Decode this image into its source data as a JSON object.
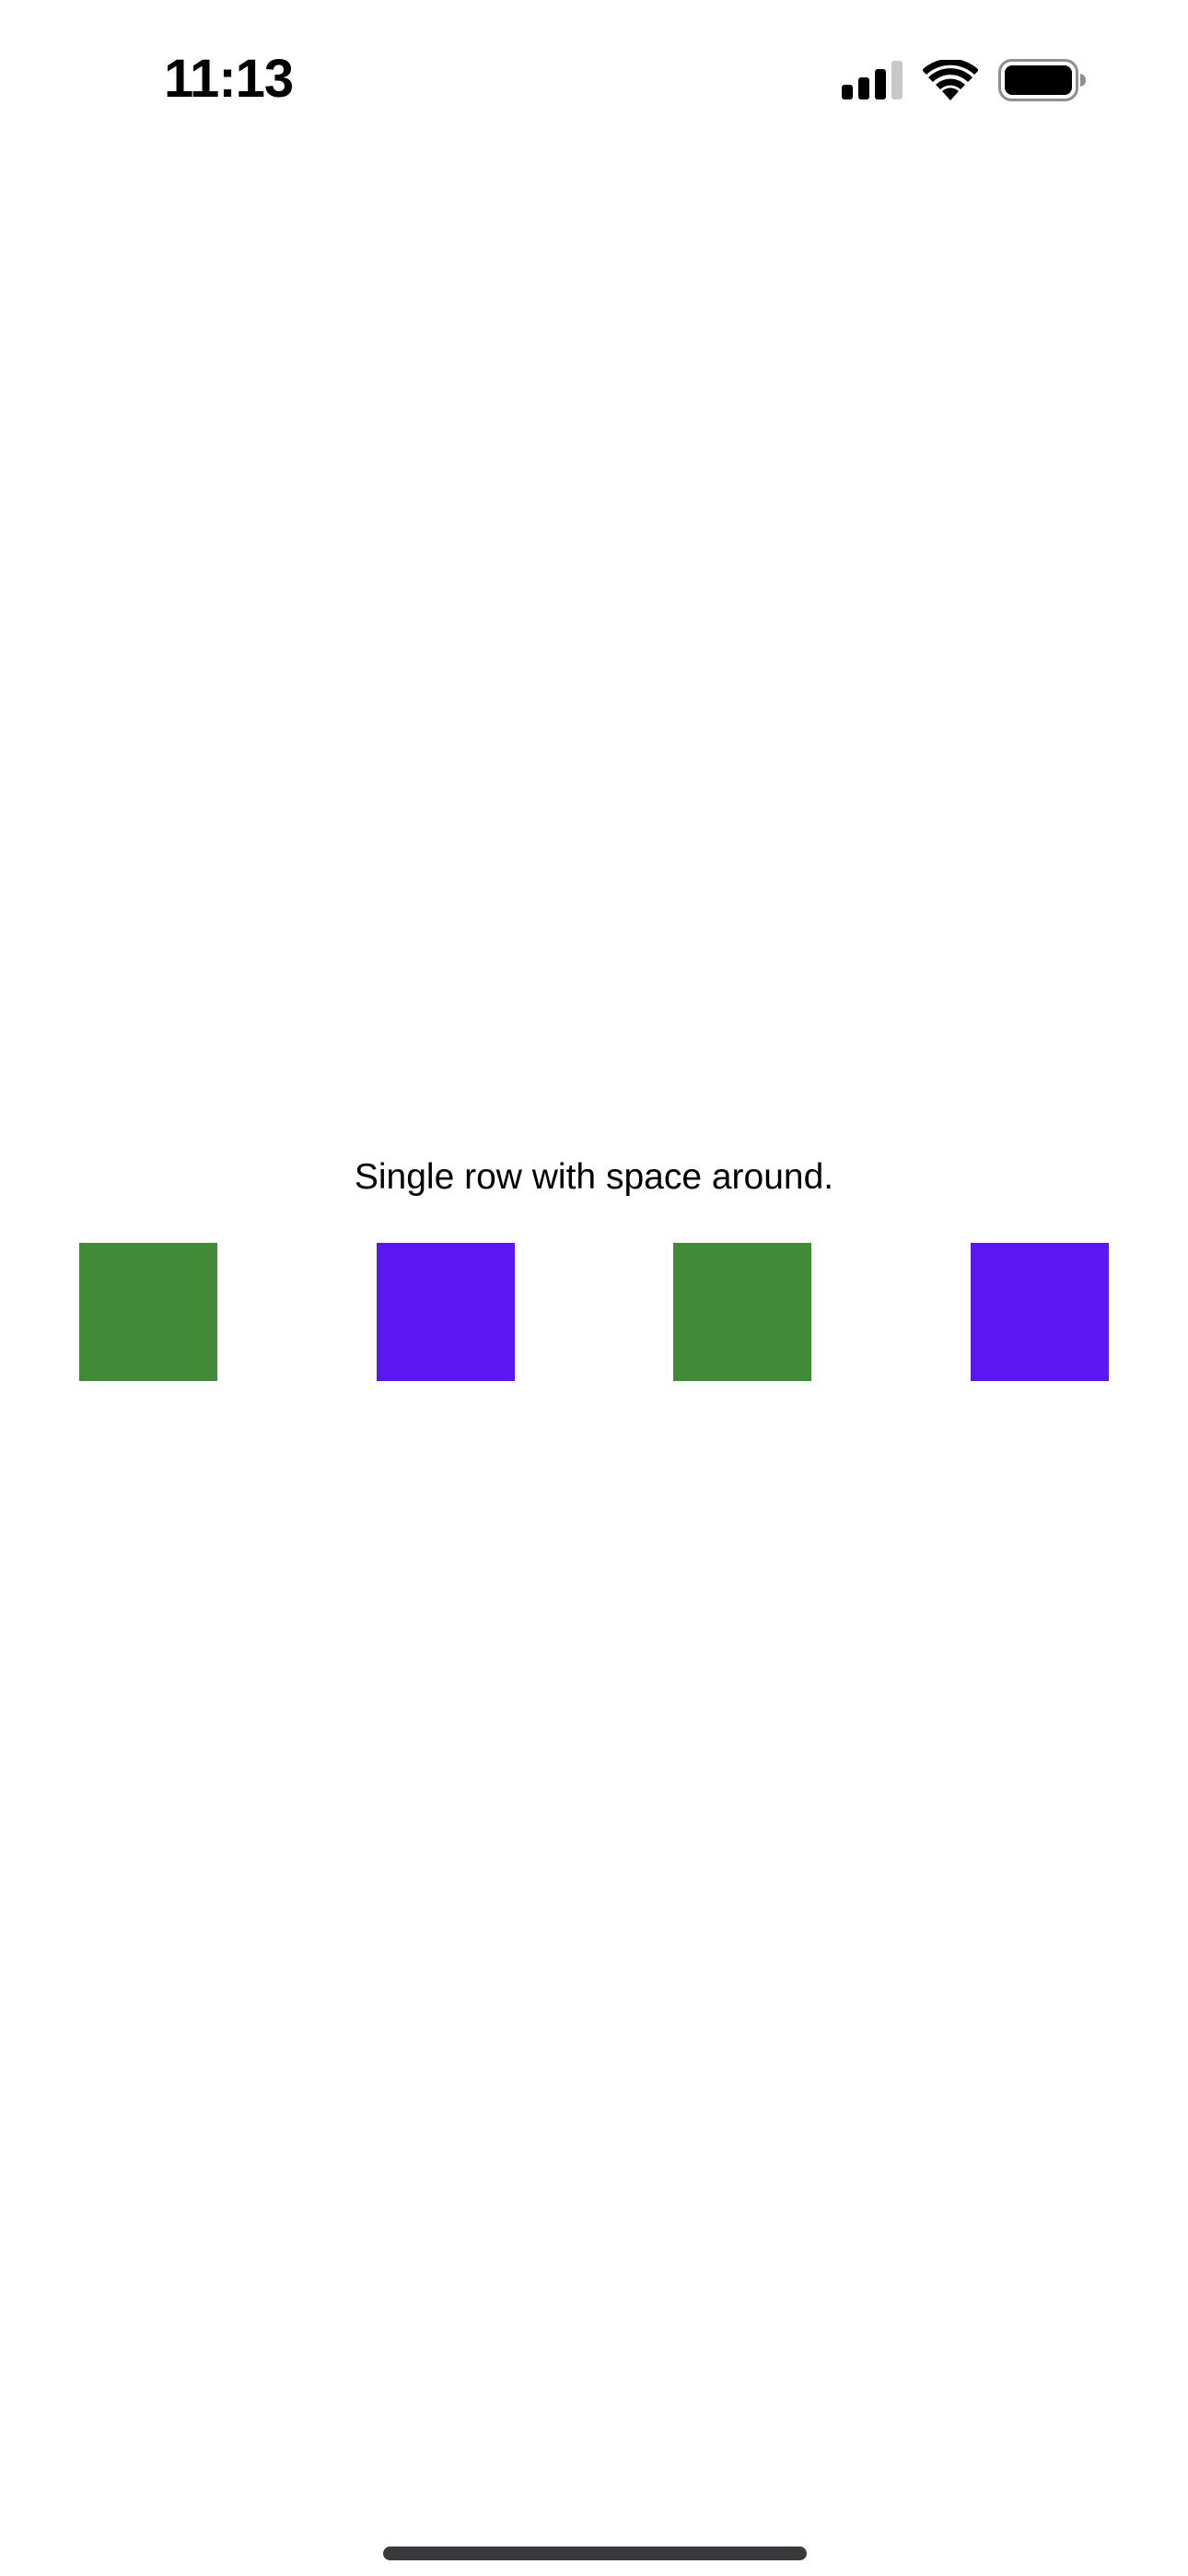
{
  "status_bar": {
    "time": "11:13",
    "icons": [
      "cellular-signal-icon",
      "wifi-icon",
      "battery-icon"
    ]
  },
  "main": {
    "caption": "Single row with space around.",
    "boxes": [
      {
        "color": "#418B38"
      },
      {
        "color": "#5B17F2"
      },
      {
        "color": "#418B38"
      },
      {
        "color": "#5B17F2"
      }
    ]
  },
  "colors": {
    "background": "#FFFFFF",
    "text": "#000000",
    "green": "#418B38",
    "purple": "#5B17F2",
    "home_indicator": "#3A3A3C"
  }
}
